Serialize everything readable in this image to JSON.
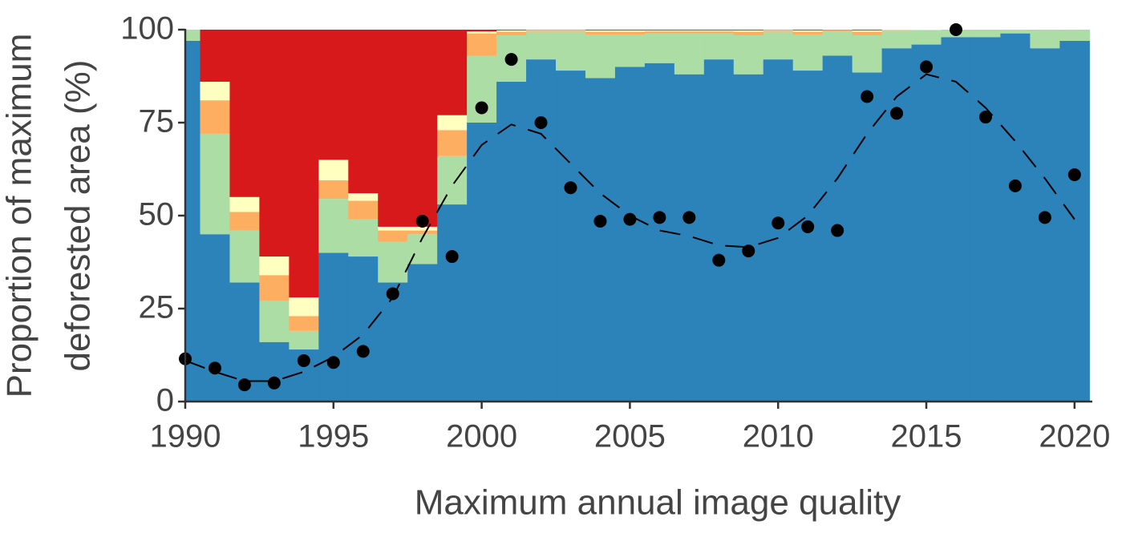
{
  "chart_data": {
    "type": "bar",
    "stacked": true,
    "xlabel": "Maximum annual image quality",
    "ylabel": [
      "Proportion of maximum",
      "deforested area (%)"
    ],
    "x": [
      1990,
      1991,
      1992,
      1993,
      1994,
      1995,
      1996,
      1997,
      1998,
      1999,
      2000,
      2001,
      2002,
      2003,
      2004,
      2005,
      2006,
      2007,
      2008,
      2009,
      2010,
      2011,
      2012,
      2013,
      2014,
      2015,
      2016,
      2017,
      2018,
      2019,
      2020
    ],
    "xlim": [
      1990,
      2020.6
    ],
    "xticks": [
      1990,
      1995,
      2000,
      2005,
      2010,
      2015,
      2020
    ],
    "ylim": [
      0,
      100
    ],
    "yticks": [
      0,
      25,
      50,
      75,
      100
    ],
    "series": [
      {
        "color": "#2b83ba",
        "values": [
          97,
          45,
          32,
          16,
          14,
          40,
          39,
          32,
          37,
          53,
          75,
          86,
          92,
          89,
          87,
          90,
          91,
          88,
          92,
          88,
          92,
          89,
          93,
          88.5,
          95,
          96,
          98,
          98,
          99,
          95,
          97
        ]
      },
      {
        "color": "#abdda4",
        "values": [
          3,
          27,
          14,
          11,
          5,
          14.5,
          10,
          11,
          8,
          13,
          18,
          12.5,
          7.3,
          10.3,
          11.7,
          8.7,
          8,
          11,
          7,
          10.5,
          7.3,
          9.7,
          6.5,
          10,
          4.7,
          3.8,
          2,
          2,
          1,
          5,
          3
        ]
      },
      {
        "color": "#fdae61",
        "values": [
          0,
          9,
          5,
          7,
          4,
          5,
          5,
          3,
          1,
          7,
          6,
          1,
          0.4,
          0.4,
          0.8,
          0.8,
          0.6,
          0.6,
          0.6,
          1,
          0.4,
          0.8,
          0.3,
          1,
          0.2,
          0.1,
          0,
          0,
          0,
          0,
          0
        ]
      },
      {
        "color": "#ffffbf",
        "values": [
          0,
          5,
          4,
          5,
          5,
          5.5,
          2,
          1,
          1,
          4,
          0.5,
          0.3,
          0.2,
          0.2,
          0.3,
          0.3,
          0.2,
          0.2,
          0.2,
          0.3,
          0.2,
          0.3,
          0.1,
          0.3,
          0.1,
          0.1,
          0,
          0,
          0,
          0,
          0
        ]
      },
      {
        "color": "#d7191c",
        "values": [
          0,
          14,
          45,
          61,
          72,
          35,
          44,
          53,
          53,
          23,
          0.5,
          0.2,
          0.1,
          0.1,
          0.2,
          0.2,
          0.2,
          0.2,
          0.2,
          0.2,
          0.1,
          0.2,
          0.1,
          0.2,
          0,
          0,
          0,
          0,
          0,
          0,
          0
        ]
      },
      {
        "type": "scatter",
        "color": "#000000",
        "values": [
          11.5,
          9,
          4.5,
          5,
          11,
          10.5,
          13.5,
          29,
          48.5,
          39,
          79,
          92,
          75,
          57.5,
          48.5,
          49,
          49.5,
          49.5,
          38,
          40.5,
          48,
          47,
          46,
          82,
          77.5,
          90,
          100,
          76.5,
          58,
          49.5,
          61
        ]
      },
      {
        "type": "line",
        "dashed": true,
        "color": "#000000",
        "values": [
          11,
          8,
          5.5,
          5.5,
          8,
          12,
          18,
          28,
          44,
          58,
          69,
          74.5,
          72,
          64,
          56,
          50,
          46,
          44.5,
          42,
          41.5,
          44,
          50,
          60,
          72,
          82,
          88,
          86,
          79,
          70,
          60,
          49
        ]
      }
    ]
  }
}
